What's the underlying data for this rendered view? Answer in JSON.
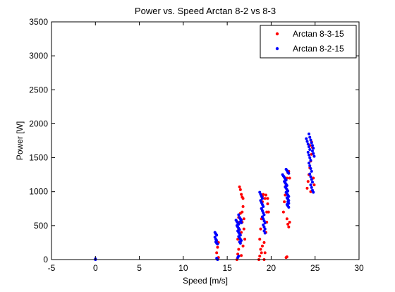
{
  "chart_data": {
    "type": "scatter",
    "title": "Power vs. Speed Arctan 8-2 vs 8-3",
    "xlabel": "Speed [m/s]",
    "ylabel": "Power [W]",
    "xlim": [
      -5,
      30
    ],
    "ylim": [
      0,
      3500
    ],
    "x_ticks": [
      -5,
      0,
      5,
      10,
      15,
      20,
      25,
      30
    ],
    "y_ticks": [
      0,
      500,
      1000,
      1500,
      2000,
      2500,
      3000,
      3500
    ],
    "grid": false,
    "legend_position": "top-right",
    "series": [
      {
        "name": "Arctan 8-3-15",
        "color": "#ff0000",
        "marker": "dot",
        "points": [
          [
            13.8,
            100
          ],
          [
            13.9,
            180
          ],
          [
            14.0,
            250
          ],
          [
            13.9,
            10
          ],
          [
            14.0,
            30
          ],
          [
            16.1,
            0
          ],
          [
            16.2,
            80
          ],
          [
            16.3,
            150
          ],
          [
            16.2,
            300
          ],
          [
            16.3,
            450
          ],
          [
            16.4,
            550
          ],
          [
            16.3,
            620
          ],
          [
            16.5,
            680
          ],
          [
            16.6,
            400
          ],
          [
            16.5,
            250
          ],
          [
            16.7,
            550
          ],
          [
            16.6,
            60
          ],
          [
            16.7,
            700
          ],
          [
            16.4,
            1070
          ],
          [
            16.5,
            1030
          ],
          [
            16.6,
            960
          ],
          [
            16.7,
            920
          ],
          [
            16.8,
            900
          ],
          [
            16.8,
            780
          ],
          [
            16.9,
            600
          ],
          [
            16.9,
            450
          ],
          [
            17.0,
            300
          ],
          [
            16.8,
            200
          ],
          [
            18.6,
            0
          ],
          [
            18.7,
            50
          ],
          [
            18.8,
            150
          ],
          [
            18.7,
            300
          ],
          [
            18.8,
            450
          ],
          [
            18.9,
            600
          ],
          [
            18.9,
            750
          ],
          [
            19.0,
            850
          ],
          [
            19.0,
            930
          ],
          [
            19.1,
            960
          ],
          [
            18.9,
            100
          ],
          [
            19.0,
            200
          ],
          [
            19.2,
            0
          ],
          [
            19.3,
            100
          ],
          [
            19.2,
            250
          ],
          [
            19.4,
            400
          ],
          [
            19.5,
            550
          ],
          [
            19.5,
            700
          ],
          [
            19.6,
            820
          ],
          [
            19.6,
            900
          ],
          [
            19.7,
            700
          ],
          [
            19.3,
            900
          ],
          [
            19.4,
            950
          ],
          [
            21.4,
            700
          ],
          [
            21.5,
            850
          ],
          [
            21.6,
            950
          ],
          [
            21.7,
            1100
          ],
          [
            21.8,
            1200
          ],
          [
            21.9,
            1280
          ],
          [
            22.0,
            1300
          ],
          [
            21.8,
            600
          ],
          [
            21.9,
            520
          ],
          [
            22.0,
            480
          ],
          [
            22.1,
            550
          ],
          [
            21.7,
            30
          ],
          [
            21.8,
            40
          ],
          [
            22.1,
            1200
          ],
          [
            24.1,
            1050
          ],
          [
            24.2,
            1150
          ],
          [
            24.3,
            1250
          ],
          [
            24.4,
            1350
          ],
          [
            24.5,
            1450
          ],
          [
            24.6,
            1550
          ],
          [
            24.7,
            1650
          ],
          [
            24.8,
            1200
          ],
          [
            24.9,
            1100
          ],
          [
            24.4,
            1680
          ],
          [
            24.6,
            1730
          ],
          [
            24.5,
            1000
          ]
        ]
      },
      {
        "name": "Arctan 8-2-15",
        "color": "#0000ff",
        "marker": "dot",
        "points": [
          [
            0,
            0
          ],
          [
            0,
            10
          ],
          [
            13.6,
            400
          ],
          [
            13.7,
            380
          ],
          [
            13.8,
            360
          ],
          [
            13.6,
            330
          ],
          [
            13.7,
            300
          ],
          [
            13.8,
            280
          ],
          [
            13.7,
            260
          ],
          [
            13.8,
            240
          ],
          [
            13.9,
            230
          ],
          [
            13.8,
            20
          ],
          [
            13.9,
            0
          ],
          [
            16.0,
            580
          ],
          [
            16.1,
            560
          ],
          [
            16.2,
            540
          ],
          [
            16.3,
            520
          ],
          [
            16.1,
            500
          ],
          [
            16.2,
            480
          ],
          [
            16.3,
            460
          ],
          [
            16.4,
            440
          ],
          [
            16.2,
            420
          ],
          [
            16.3,
            400
          ],
          [
            16.4,
            380
          ],
          [
            16.5,
            360
          ],
          [
            16.3,
            340
          ],
          [
            16.4,
            320
          ],
          [
            16.5,
            300
          ],
          [
            16.6,
            280
          ],
          [
            16.4,
            260
          ],
          [
            16.5,
            240
          ],
          [
            16.3,
            660
          ],
          [
            16.4,
            620
          ],
          [
            16.5,
            600
          ],
          [
            16.6,
            580
          ],
          [
            16.5,
            560
          ],
          [
            16.6,
            540
          ],
          [
            16.2,
            30
          ],
          [
            16.3,
            50
          ],
          [
            18.7,
            990
          ],
          [
            18.8,
            960
          ],
          [
            18.9,
            930
          ],
          [
            19.0,
            900
          ],
          [
            18.8,
            870
          ],
          [
            18.9,
            840
          ],
          [
            19.0,
            810
          ],
          [
            19.1,
            780
          ],
          [
            18.9,
            750
          ],
          [
            19.0,
            720
          ],
          [
            19.1,
            690
          ],
          [
            19.2,
            660
          ],
          [
            19.0,
            630
          ],
          [
            19.1,
            600
          ],
          [
            19.2,
            570
          ],
          [
            19.3,
            540
          ],
          [
            19.1,
            510
          ],
          [
            19.2,
            480
          ],
          [
            19.3,
            450
          ],
          [
            19.2,
            420
          ],
          [
            19.3,
            390
          ],
          [
            21.3,
            1250
          ],
          [
            21.4,
            1230
          ],
          [
            21.5,
            1210
          ],
          [
            21.6,
            1190
          ],
          [
            21.7,
            1170
          ],
          [
            21.5,
            1150
          ],
          [
            21.6,
            1130
          ],
          [
            21.7,
            1110
          ],
          [
            21.8,
            1090
          ],
          [
            21.6,
            1070
          ],
          [
            21.7,
            1050
          ],
          [
            21.8,
            1030
          ],
          [
            21.9,
            1010
          ],
          [
            21.7,
            990
          ],
          [
            21.8,
            970
          ],
          [
            21.9,
            950
          ],
          [
            22.0,
            930
          ],
          [
            21.8,
            910
          ],
          [
            21.9,
            890
          ],
          [
            22.0,
            870
          ],
          [
            21.9,
            850
          ],
          [
            22.0,
            830
          ],
          [
            21.8,
            810
          ],
          [
            21.9,
            790
          ],
          [
            22.0,
            770
          ],
          [
            21.7,
            1330
          ],
          [
            21.8,
            1310
          ],
          [
            21.9,
            1290
          ],
          [
            22.0,
            1270
          ],
          [
            24.0,
            1780
          ],
          [
            24.1,
            1740
          ],
          [
            24.2,
            1700
          ],
          [
            24.3,
            1660
          ],
          [
            24.4,
            1620
          ],
          [
            24.2,
            1580
          ],
          [
            24.3,
            1540
          ],
          [
            24.4,
            1500
          ],
          [
            24.5,
            1460
          ],
          [
            24.3,
            1420
          ],
          [
            24.4,
            1380
          ],
          [
            24.5,
            1340
          ],
          [
            24.6,
            1300
          ],
          [
            24.4,
            1260
          ],
          [
            24.5,
            1220
          ],
          [
            24.6,
            1180
          ],
          [
            24.7,
            1140
          ],
          [
            24.5,
            1100
          ],
          [
            24.6,
            1060
          ],
          [
            24.7,
            1020
          ],
          [
            24.8,
            990
          ],
          [
            24.3,
            1850
          ],
          [
            24.4,
            1800
          ],
          [
            24.5,
            1760
          ],
          [
            24.6,
            1720
          ],
          [
            24.7,
            1680
          ],
          [
            24.8,
            1640
          ],
          [
            24.7,
            1600
          ],
          [
            24.8,
            1560
          ],
          [
            24.9,
            1520
          ]
        ]
      }
    ]
  }
}
